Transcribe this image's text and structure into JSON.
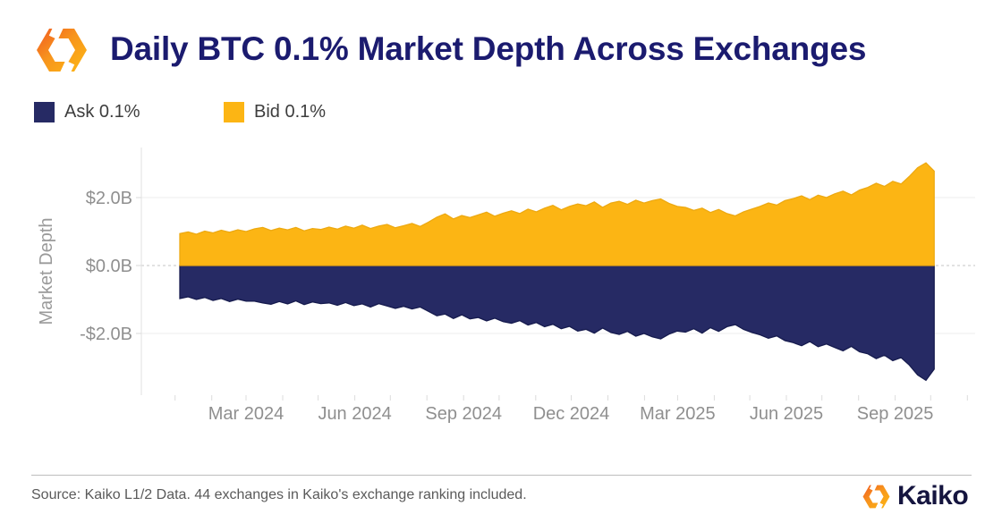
{
  "header": {
    "title": "Daily BTC 0.1% Market Depth Across Exchanges"
  },
  "footer": {
    "source": "Source: Kaiko L1/2 Data. 44 exchanges in Kaiko's exchange ranking included.",
    "brand": "Kaiko"
  },
  "colors": {
    "title_navy": "#1b1b6f",
    "ask_navy": "#262a64",
    "bid_yellow": "#fcb514",
    "brand_orange": "#f7941d",
    "axis_text_gray": "#8f8f8f"
  },
  "chart_data": {
    "type": "area",
    "title": "Daily BTC 0.1% Market Depth Across Exchanges",
    "ylabel": "Market Depth",
    "unit": "$B",
    "sampling": "weekly",
    "x_start": "2024-01-05",
    "x_end": "2025-10-04",
    "grid": "horizontal",
    "legend_position": "top-left",
    "ylim": [
      -3.8,
      3.5
    ],
    "x_ticks": [
      {
        "label": "Mar 2024",
        "date": "2024-03-01"
      },
      {
        "label": "Jun 2024",
        "date": "2024-06-01"
      },
      {
        "label": "Sep 2024",
        "date": "2024-09-01"
      },
      {
        "label": "Dec 2024",
        "date": "2024-12-01"
      },
      {
        "label": "Mar 2025",
        "date": "2025-03-01"
      },
      {
        "label": "Jun 2025",
        "date": "2025-06-01"
      },
      {
        "label": "Sep 2025",
        "date": "2025-09-01"
      }
    ],
    "y_ticks": [
      {
        "label": "$2.0B",
        "value": 2
      },
      {
        "label": "$0.0B",
        "value": 0
      },
      {
        "label": "-$2.0B",
        "value": -2
      }
    ],
    "series": [
      {
        "name": "Ask 0.1%",
        "color": "#262a64",
        "edge": "#161b4e",
        "orientation": "negative",
        "values": [
          0.97,
          0.92,
          1.0,
          0.94,
          1.03,
          0.97,
          1.06,
          0.99,
          1.05,
          1.05,
          1.1,
          1.14,
          1.06,
          1.13,
          1.04,
          1.15,
          1.07,
          1.12,
          1.1,
          1.17,
          1.09,
          1.18,
          1.13,
          1.22,
          1.12,
          1.19,
          1.26,
          1.2,
          1.28,
          1.22,
          1.35,
          1.48,
          1.43,
          1.56,
          1.45,
          1.57,
          1.53,
          1.63,
          1.55,
          1.65,
          1.7,
          1.62,
          1.75,
          1.68,
          1.8,
          1.73,
          1.86,
          1.79,
          1.93,
          1.88,
          1.99,
          1.84,
          1.97,
          2.03,
          1.94,
          2.08,
          2.0,
          2.1,
          2.16,
          2.02,
          1.93,
          1.96,
          1.86,
          1.99,
          1.83,
          1.94,
          1.8,
          1.74,
          1.88,
          1.97,
          2.04,
          2.14,
          2.07,
          2.21,
          2.27,
          2.36,
          2.24,
          2.39,
          2.31,
          2.41,
          2.51,
          2.38,
          2.54,
          2.6,
          2.74,
          2.64,
          2.8,
          2.71,
          2.93,
          3.22,
          3.38,
          3.05
        ]
      },
      {
        "name": "Bid 0.1%",
        "color": "#fcb514",
        "edge": "#eda911",
        "orientation": "positive",
        "values": [
          0.94,
          0.99,
          0.92,
          1.01,
          0.96,
          1.04,
          0.98,
          1.05,
          1.0,
          1.08,
          1.12,
          1.03,
          1.1,
          1.05,
          1.12,
          1.02,
          1.09,
          1.06,
          1.13,
          1.07,
          1.16,
          1.1,
          1.19,
          1.09,
          1.16,
          1.21,
          1.11,
          1.17,
          1.24,
          1.15,
          1.28,
          1.42,
          1.52,
          1.37,
          1.47,
          1.41,
          1.49,
          1.57,
          1.45,
          1.54,
          1.61,
          1.53,
          1.66,
          1.58,
          1.69,
          1.77,
          1.64,
          1.74,
          1.81,
          1.76,
          1.87,
          1.71,
          1.84,
          1.89,
          1.8,
          1.92,
          1.84,
          1.91,
          1.96,
          1.83,
          1.74,
          1.71,
          1.62,
          1.69,
          1.56,
          1.65,
          1.53,
          1.46,
          1.58,
          1.66,
          1.74,
          1.84,
          1.78,
          1.91,
          1.97,
          2.05,
          1.94,
          2.07,
          2.0,
          2.11,
          2.19,
          2.08,
          2.22,
          2.3,
          2.42,
          2.33,
          2.48,
          2.4,
          2.62,
          2.88,
          3.02,
          2.78
        ]
      }
    ]
  }
}
